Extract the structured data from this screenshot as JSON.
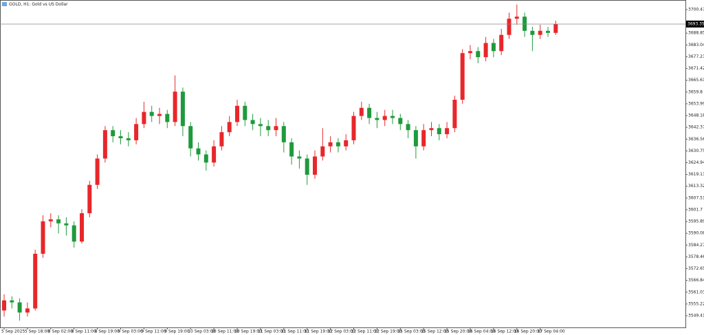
{
  "chart_data": {
    "type": "candlestick",
    "title": "GOLD, H1: Gold vs US Dollar",
    "up_color": "#e8272a",
    "down_color": "#1f9a3c",
    "current_price": 3693.35,
    "current_price_label": "3693.35",
    "ylim": [
      3543.64,
      3705.22
    ],
    "yticks": [
      3700.47,
      3688.85,
      3683.04,
      3677.23,
      3671.42,
      3665.61,
      3659.8,
      3653.99,
      3648.18,
      3642.37,
      3636.56,
      3630.75,
      3624.94,
      3619.13,
      3613.32,
      3607.51,
      3601.7,
      3595.89,
      3590.08,
      3584.27,
      3578.46,
      3572.65,
      3566.84,
      3561.03,
      3555.22,
      3549.41
    ],
    "x": [
      "5 Sep 2025",
      null,
      null,
      "5 Sep 18:00",
      null,
      null,
      "8 Sep 02:00",
      null,
      null,
      "8 Sep 11:00",
      null,
      null,
      "8 Sep 19:00",
      null,
      null,
      "9 Sep 03:00",
      null,
      null,
      "9 Sep 11:00",
      null,
      null,
      "9 Sep 19:00",
      null,
      null,
      "10 Sep 03:00",
      null,
      null,
      "10 Sep 11:00",
      null,
      null,
      "10 Sep 19:00",
      null,
      null,
      "11 Sep 03:00",
      null,
      null,
      "11 Sep 11:00",
      null,
      null,
      "11 Sep 19:00",
      null,
      null,
      "12 Sep 03:00",
      null,
      null,
      "12 Sep 11:00",
      null,
      null,
      "12 Sep 19:00",
      null,
      null,
      "15 Sep 03:00",
      null,
      null,
      "15 Sep 12:00",
      null,
      null,
      "15 Sep 20:00",
      null,
      null,
      "16 Sep 04:00",
      null,
      null,
      "16 Sep 12:00",
      null,
      null,
      "16 Sep 20:00",
      null,
      null,
      "17 Sep 04:00",
      null,
      null
    ],
    "open": [
      3552,
      3557,
      3556,
      3551,
      3553,
      3580,
      3596,
      3597,
      3595,
      3594,
      3586,
      3600,
      3614,
      3627,
      3641,
      3638,
      3637,
      3636,
      3644,
      3650,
      3648,
      3649,
      3645,
      3660,
      3643,
      3632,
      3629,
      3625,
      3633,
      3640,
      3645,
      3653,
      3646,
      3644,
      3643,
      3641,
      3643,
      3635,
      3628,
      3627,
      3619,
      3628,
      3633,
      3635,
      3633,
      3636,
      3648,
      3652,
      3647,
      3646,
      3648,
      3647,
      3644,
      3641,
      3633,
      3641,
      3642,
      3639,
      3642,
      3656,
      3679,
      3680,
      3677,
      3684,
      3680,
      3688,
      3696,
      3697,
      3690,
      3688,
      3690,
      3689
    ],
    "high": [
      3560,
      3559,
      3558,
      3556,
      3582,
      3599,
      3600,
      3599,
      3598,
      3596,
      3602,
      3616,
      3629,
      3643,
      3643,
      3641,
      3640,
      3647,
      3655,
      3653,
      3652,
      3651,
      3668,
      3662,
      3645,
      3635,
      3631,
      3636,
      3643,
      3648,
      3656,
      3655,
      3649,
      3647,
      3646,
      3647,
      3645,
      3637,
      3631,
      3629,
      3631,
      3642,
      3638,
      3637,
      3639,
      3650,
      3655,
      3654,
      3650,
      3651,
      3651,
      3649,
      3646,
      3643,
      3644,
      3645,
      3644,
      3645,
      3658,
      3681,
      3683,
      3682,
      3687,
      3686,
      3691,
      3699,
      3703,
      3699,
      3692,
      3693,
      3692,
      3695
    ],
    "low": [
      3549,
      3553,
      3547,
      3549,
      3552,
      3578,
      3593,
      3590,
      3589,
      3583,
      3585,
      3598,
      3612,
      3625,
      3635,
      3634,
      3633,
      3634,
      3642,
      3645,
      3644,
      3642,
      3643,
      3638,
      3628,
      3626,
      3621,
      3623,
      3631,
      3638,
      3643,
      3643,
      3641,
      3638,
      3638,
      3638,
      3630,
      3624,
      3622,
      3614,
      3617,
      3626,
      3630,
      3630,
      3631,
      3634,
      3646,
      3644,
      3642,
      3643,
      3644,
      3641,
      3637,
      3627,
      3631,
      3638,
      3636,
      3637,
      3640,
      3654,
      3676,
      3674,
      3675,
      3677,
      3678,
      3686,
      3693,
      3687,
      3680,
      3686,
      3687,
      3688
    ],
    "close": [
      3557,
      3556,
      3551,
      3553,
      3580,
      3596,
      3597,
      3595,
      3594,
      3586,
      3600,
      3614,
      3627,
      3641,
      3638,
      3637,
      3636,
      3644,
      3650,
      3648,
      3649,
      3645,
      3660,
      3643,
      3632,
      3629,
      3625,
      3633,
      3640,
      3645,
      3653,
      3646,
      3644,
      3643,
      3641,
      3643,
      3635,
      3628,
      3627,
      3619,
      3628,
      3633,
      3635,
      3633,
      3636,
      3648,
      3652,
      3647,
      3646,
      3648,
      3647,
      3644,
      3641,
      3633,
      3641,
      3642,
      3639,
      3642,
      3656,
      3679,
      3680,
      3677,
      3684,
      3680,
      3688,
      3696,
      3697,
      3690,
      3688,
      3690,
      3689,
      3693.35
    ]
  }
}
